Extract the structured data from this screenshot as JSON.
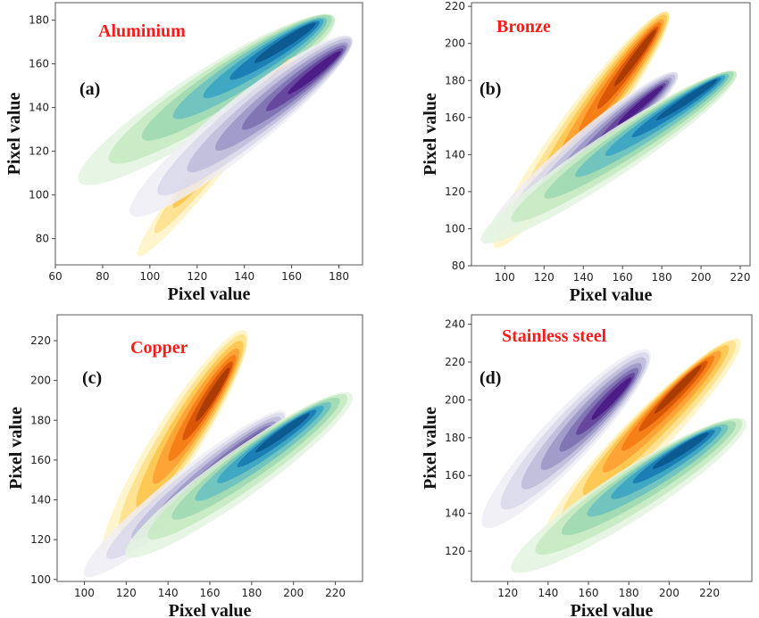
{
  "chart_data": [
    {
      "type": "kde-contour",
      "panel_label": "(a)",
      "title": "Aluminium",
      "xlabel": "Pixel value",
      "ylabel": "Pixel value",
      "xlim": [
        60,
        190
      ],
      "ylim": [
        68,
        188
      ],
      "xticks": [
        60,
        80,
        100,
        120,
        140,
        160,
        180
      ],
      "yticks": [
        80,
        100,
        120,
        140,
        160,
        180
      ],
      "series": [
        {
          "color": "green-blue",
          "start": [
            70,
            106
          ],
          "end": [
            178,
            181
          ],
          "peak": [
            164,
            175
          ],
          "width": 10
        },
        {
          "color": "yellow-orange",
          "start": [
            95,
            72
          ],
          "end": [
            162,
            163
          ],
          "peak": [
            148,
            150
          ],
          "width": 5
        },
        {
          "color": "purple",
          "start": [
            92,
            91
          ],
          "end": [
            185,
            172
          ],
          "peak": [
            176,
            161
          ],
          "width": 9
        }
      ]
    },
    {
      "type": "kde-contour",
      "panel_label": "(b)",
      "title": "Bronze",
      "xlabel": "Pixel value",
      "ylabel": "Pixel value",
      "xlim": [
        83,
        225
      ],
      "ylim": [
        80,
        222
      ],
      "xticks": [
        100,
        120,
        140,
        160,
        180,
        200,
        220
      ],
      "yticks": [
        80,
        100,
        120,
        140,
        160,
        180,
        200,
        220
      ],
      "series": [
        {
          "color": "yellow-orange",
          "start": [
            95,
            90
          ],
          "end": [
            183,
            217
          ],
          "peak": [
            172,
            200
          ],
          "width": 9
        },
        {
          "color": "purple",
          "start": [
            92,
            97
          ],
          "end": [
            188,
            184
          ],
          "peak": [
            175,
            172
          ],
          "width": 8
        },
        {
          "color": "green-blue",
          "start": [
            88,
            93
          ],
          "end": [
            218,
            184
          ],
          "peak": [
            201,
            176
          ],
          "width": 9
        }
      ]
    },
    {
      "type": "kde-contour",
      "panel_label": "(c)",
      "title": "Copper",
      "xlabel": "Pixel value",
      "ylabel": "Pixel value",
      "xlim": [
        87,
        233
      ],
      "ylim": [
        99,
        233
      ],
      "xticks": [
        100,
        120,
        140,
        160,
        180,
        200,
        220
      ],
      "yticks": [
        100,
        120,
        140,
        160,
        180,
        200,
        220
      ],
      "series": [
        {
          "color": "yellow-orange",
          "start": [
            110,
            112
          ],
          "end": [
            177,
            225
          ],
          "peak": [
            165,
            198
          ],
          "width": 9
        },
        {
          "color": "purple",
          "start": [
            100,
            102
          ],
          "end": [
            196,
            184
          ],
          "peak": [
            180,
            168
          ],
          "width": 8
        },
        {
          "color": "green-blue",
          "start": [
            120,
            112
          ],
          "end": [
            228,
            193
          ],
          "peak": [
            199,
            178
          ],
          "width": 9
        }
      ]
    },
    {
      "type": "kde-contour",
      "panel_label": "(d)",
      "title": "Stainless steel",
      "xlabel": "Pixel value",
      "ylabel": "Pixel value",
      "xlim": [
        102,
        241
      ],
      "ylim": [
        104,
        245
      ],
      "xticks": [
        120,
        140,
        160,
        180,
        200,
        220
      ],
      "yticks": [
        120,
        140,
        160,
        180,
        200,
        220,
        240
      ],
      "series": [
        {
          "color": "purple",
          "start": [
            108,
            133
          ],
          "end": [
            190,
            226
          ],
          "peak": [
            176,
            205
          ],
          "width": 10
        },
        {
          "color": "yellow-orange",
          "start": [
            138,
            126
          ],
          "end": [
            235,
            232
          ],
          "peak": [
            208,
            211
          ],
          "width": 9
        },
        {
          "color": "green-blue",
          "start": [
            122,
            110
          ],
          "end": [
            238,
            189
          ],
          "peak": [
            211,
            178
          ],
          "width": 10
        }
      ]
    }
  ],
  "colors": {
    "title": "#ff1a1a",
    "green-blue": [
      "#e3f4df",
      "#c5e9c2",
      "#9fd9b3",
      "#6ec3bf",
      "#3da6c4",
      "#1a7db5",
      "#0c5a91"
    ],
    "yellow-orange": [
      "#fff3c4",
      "#ffe08a",
      "#fec44f",
      "#fe9f33",
      "#f57d15",
      "#d95508",
      "#a83a03"
    ],
    "purple": [
      "#eeedf6",
      "#d9d8ea",
      "#bfbcdc",
      "#9e99c8",
      "#7f73b3",
      "#65479e",
      "#4c1d87"
    ]
  }
}
